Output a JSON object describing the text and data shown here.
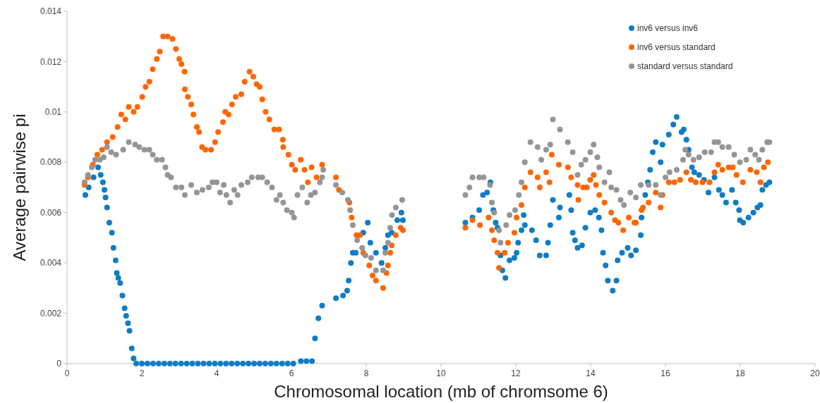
{
  "chart_data": {
    "type": "scatter",
    "xlabel": "Chromosomal location (mb of chromsome 6)",
    "ylabel": "Average pairwise pi",
    "xlim": [
      0,
      20
    ],
    "ylim": [
      0,
      0.014
    ],
    "xticks": [
      0,
      2,
      4,
      6,
      8,
      10,
      12,
      14,
      16,
      18,
      20
    ],
    "yticks": [
      0,
      0.002,
      0.004,
      0.006,
      0.008,
      0.01,
      0.012,
      0.014
    ],
    "grid": false,
    "legend": "top right",
    "marker": "circle",
    "series": [
      {
        "name": "inv6 versus inv6",
        "color": "#0f7cc6",
        "x": [
          0.49,
          0.58,
          0.71,
          0.83,
          0.9,
          0.96,
          1.0,
          1.03,
          1.07,
          1.13,
          1.2,
          1.24,
          1.3,
          1.33,
          1.37,
          1.42,
          1.48,
          1.54,
          1.58,
          1.63,
          1.67,
          1.73,
          1.78,
          1.85,
          2.0,
          2.15,
          2.3,
          2.45,
          2.6,
          2.75,
          2.9,
          3.05,
          3.2,
          3.35,
          3.5,
          3.65,
          3.8,
          3.95,
          4.1,
          4.25,
          4.4,
          4.55,
          4.7,
          4.85,
          5.0,
          5.15,
          5.3,
          5.45,
          5.6,
          5.75,
          5.9,
          6.05,
          6.25,
          6.4,
          6.55,
          6.63,
          6.72,
          6.82,
          7.19,
          7.38,
          7.49,
          7.53,
          7.59,
          7.64,
          7.72,
          7.92,
          8.04,
          8.11,
          8.26,
          8.41,
          8.51,
          8.58,
          8.68,
          8.83,
          8.94,
          8.98,
          10.65,
          10.84,
          11.02,
          11.12,
          11.23,
          11.32,
          11.4,
          11.46,
          11.51,
          11.59,
          11.64,
          11.72,
          11.83,
          11.96,
          12.02,
          12.06,
          12.15,
          12.21,
          12.24,
          12.43,
          12.54,
          12.64,
          12.81,
          12.86,
          12.92,
          12.99,
          13.15,
          13.18,
          13.43,
          13.48,
          13.52,
          13.58,
          13.65,
          13.77,
          13.86,
          13.99,
          14.12,
          14.22,
          14.29,
          14.33,
          14.4,
          14.46,
          14.59,
          14.69,
          14.72,
          14.84,
          14.99,
          15.08,
          15.21,
          15.34,
          15.36,
          15.46,
          15.53,
          15.59,
          15.66,
          15.74,
          15.87,
          15.92,
          16.09,
          16.21,
          16.3,
          16.43,
          16.49,
          16.56,
          16.62,
          16.71,
          16.77,
          16.9,
          17.03,
          17.15,
          17.31,
          17.43,
          17.52,
          17.62,
          17.78,
          17.88,
          17.97,
          17.99,
          18.08,
          18.22,
          18.35,
          18.46,
          18.54,
          18.59,
          18.69,
          18.78
        ],
        "values": [
          0.0067,
          0.007,
          0.0074,
          0.0078,
          0.0075,
          0.0072,
          0.0069,
          0.0066,
          0.0062,
          0.0056,
          0.0052,
          0.0046,
          0.0041,
          0.0036,
          0.0034,
          0.0032,
          0.0027,
          0.0022,
          0.0019,
          0.0016,
          0.0013,
          0.0006,
          0.0002,
          0,
          0,
          0,
          0,
          0,
          0,
          0,
          0,
          0,
          0,
          0,
          0,
          0,
          0,
          0,
          0,
          0,
          0,
          0,
          0,
          0,
          0,
          0,
          0,
          0,
          0,
          0,
          0,
          0,
          0.0001,
          0.0001,
          0.0001,
          0.001,
          0.0018,
          0.0023,
          0.0026,
          0.0027,
          0.0029,
          0.0033,
          0.004,
          0.0044,
          0.0044,
          0.0052,
          0.0056,
          0.0048,
          0.0044,
          0.004,
          0.0046,
          0.0051,
          0.0052,
          0.0057,
          0.006,
          0.0057,
          0.0056,
          0.0058,
          0.0061,
          0.0067,
          0.0068,
          0.0072,
          0.0061,
          0.0056,
          0.0054,
          0.0043,
          0.0037,
          0.0034,
          0.0041,
          0.0042,
          0.0044,
          0.0048,
          0.0053,
          0.0059,
          0.0055,
          0.0053,
          0.0049,
          0.0043,
          0.0043,
          0.0048,
          0.0055,
          0.0065,
          0.0058,
          0.0062,
          0.0067,
          0.0061,
          0.0052,
          0.0049,
          0.0046,
          0.0047,
          0.0054,
          0.006,
          0.0061,
          0.0058,
          0.0053,
          0.0044,
          0.0039,
          0.0033,
          0.0029,
          0.0033,
          0.0041,
          0.0044,
          0.0046,
          0.0043,
          0.0045,
          0.0051,
          0.0058,
          0.0067,
          0.0072,
          0.0077,
          0.0084,
          0.0088,
          0.008,
          0.0087,
          0.0091,
          0.0095,
          0.0098,
          0.0092,
          0.0093,
          0.0089,
          0.0085,
          0.0078,
          0.0076,
          0.0075,
          0.0073,
          0.0068,
          0.0074,
          0.0069,
          0.0067,
          0.0064,
          0.0069,
          0.0064,
          0.0061,
          0.0057,
          0.0056,
          0.0058,
          0.006,
          0.0062,
          0.0063,
          0.0069,
          0.0071,
          0.0072
        ]
      },
      {
        "name": "inv6 versus standard",
        "color": "#ff6600",
        "x": [
          0.47,
          0.56,
          0.69,
          0.81,
          0.94,
          1.07,
          1.22,
          1.35,
          1.45,
          1.56,
          1.65,
          1.78,
          1.88,
          2.01,
          2.1,
          2.2,
          2.29,
          2.4,
          2.48,
          2.57,
          2.69,
          2.82,
          2.91,
          3.0,
          3.06,
          3.14,
          3.15,
          3.23,
          3.32,
          3.38,
          3.47,
          3.53,
          3.61,
          3.7,
          3.85,
          3.96,
          4.04,
          4.17,
          4.23,
          4.32,
          4.41,
          4.51,
          4.66,
          4.75,
          4.88,
          4.98,
          5.07,
          5.15,
          5.22,
          5.31,
          5.41,
          5.54,
          5.67,
          5.77,
          5.78,
          5.92,
          6.01,
          6.1,
          6.25,
          6.35,
          6.44,
          6.54,
          6.67,
          6.82,
          7.19,
          7.27,
          7.55,
          7.61,
          7.74,
          7.83,
          7.92,
          8.08,
          8.17,
          8.26,
          8.45,
          8.54,
          8.58,
          8.64,
          8.68,
          8.79,
          8.92,
          8.98,
          10.65,
          10.84,
          11.04,
          11.27,
          11.36,
          11.42,
          11.51,
          11.55,
          11.7,
          11.79,
          11.96,
          12.02,
          12.15,
          12.24,
          12.39,
          12.58,
          12.64,
          12.81,
          12.9,
          12.96,
          13.15,
          13.39,
          13.48,
          13.65,
          13.67,
          13.8,
          13.9,
          13.99,
          14.08,
          14.14,
          14.23,
          14.37,
          14.55,
          14.65,
          14.74,
          14.87,
          15.02,
          15.17,
          15.21,
          15.36,
          15.4,
          15.55,
          15.74,
          15.87,
          15.92,
          16.09,
          16.24,
          16.39,
          16.56,
          16.68,
          16.81,
          16.99,
          17.18,
          17.31,
          17.41,
          17.52,
          17.69,
          17.8,
          17.9,
          18.07,
          18.27,
          18.44,
          18.54,
          18.63,
          18.74
        ],
        "values": [
          0.0071,
          0.0074,
          0.0079,
          0.0083,
          0.0085,
          0.0088,
          0.009,
          0.0094,
          0.0099,
          0.0097,
          0.0102,
          0.01,
          0.0102,
          0.0106,
          0.011,
          0.0112,
          0.0117,
          0.0121,
          0.0124,
          0.013,
          0.013,
          0.0129,
          0.0125,
          0.0121,
          0.0119,
          0.0116,
          0.0109,
          0.0106,
          0.0103,
          0.0099,
          0.0094,
          0.0092,
          0.0086,
          0.0085,
          0.0085,
          0.0088,
          0.0092,
          0.0096,
          0.01,
          0.0099,
          0.0103,
          0.0106,
          0.0107,
          0.0112,
          0.0116,
          0.0114,
          0.0111,
          0.011,
          0.0105,
          0.01,
          0.0097,
          0.0093,
          0.0093,
          0.0089,
          0.0086,
          0.0083,
          0.0079,
          0.0077,
          0.0081,
          0.0077,
          0.0072,
          0.0078,
          0.0074,
          0.0079,
          0.0074,
          0.0069,
          0.0064,
          0.0058,
          0.0051,
          0.0051,
          0.0044,
          0.0039,
          0.0035,
          0.0033,
          0.003,
          0.0036,
          0.0039,
          0.0044,
          0.0047,
          0.0051,
          0.0054,
          0.0053,
          0.0054,
          0.0057,
          0.0055,
          0.0058,
          0.0053,
          0.0049,
          0.0044,
          0.0038,
          0.0044,
          0.0048,
          0.0052,
          0.0058,
          0.0063,
          0.007,
          0.0076,
          0.0074,
          0.007,
          0.0076,
          0.0072,
          0.0083,
          0.0079,
          0.0078,
          0.0074,
          0.0071,
          0.0065,
          0.007,
          0.007,
          0.0073,
          0.0075,
          0.0071,
          0.0067,
          0.0064,
          0.006,
          0.0057,
          0.0056,
          0.0053,
          0.0058,
          0.0056,
          0.0056,
          0.0061,
          0.0062,
          0.0064,
          0.0068,
          0.0062,
          0.0067,
          0.0072,
          0.0072,
          0.0073,
          0.0076,
          0.0073,
          0.0072,
          0.0072,
          0.0072,
          0.0076,
          0.0079,
          0.0077,
          0.0078,
          0.0078,
          0.0075,
          0.0072,
          0.0077,
          0.0076,
          0.0072,
          0.0078,
          0.008
        ]
      },
      {
        "name": "standard versus standard",
        "color": "#959595",
        "x": [
          0.47,
          0.56,
          0.66,
          0.75,
          0.88,
          0.98,
          1.07,
          1.18,
          1.31,
          1.5,
          1.65,
          1.82,
          1.93,
          2.07,
          2.2,
          2.29,
          2.4,
          2.54,
          2.63,
          2.69,
          2.78,
          2.91,
          3.06,
          3.15,
          3.32,
          3.47,
          3.62,
          3.79,
          3.89,
          4.0,
          4.09,
          4.19,
          4.26,
          4.36,
          4.47,
          4.56,
          4.66,
          4.83,
          4.94,
          5.11,
          5.22,
          5.35,
          5.48,
          5.6,
          5.69,
          5.78,
          5.88,
          6.01,
          6.07,
          6.16,
          6.29,
          6.42,
          6.52,
          6.63,
          6.76,
          6.82,
          6.85,
          7.19,
          7.36,
          7.51,
          7.57,
          7.64,
          7.76,
          7.89,
          7.98,
          8.13,
          8.26,
          8.45,
          8.51,
          8.58,
          8.64,
          8.69,
          8.79,
          8.96,
          10.65,
          10.76,
          10.84,
          11.02,
          11.14,
          11.31,
          11.36,
          11.42,
          11.55,
          11.59,
          11.74,
          11.83,
          11.98,
          12.08,
          12.15,
          12.24,
          12.39,
          12.58,
          12.68,
          12.81,
          12.92,
          12.99,
          13.18,
          13.39,
          13.52,
          13.65,
          13.75,
          13.86,
          13.99,
          14.08,
          14.18,
          14.23,
          14.37,
          14.5,
          14.55,
          14.69,
          14.8,
          14.89,
          15.06,
          15.21,
          15.34,
          15.55,
          15.74,
          15.87,
          16.0,
          16.11,
          16.3,
          16.47,
          16.53,
          16.62,
          16.75,
          16.9,
          17.05,
          17.22,
          17.31,
          17.41,
          17.52,
          17.69,
          17.84,
          17.99,
          18.16,
          18.27,
          18.4,
          18.5,
          18.59,
          18.72,
          18.78
        ],
        "values": [
          0.0072,
          0.0075,
          0.0078,
          0.0081,
          0.0081,
          0.0082,
          0.0086,
          0.0084,
          0.0083,
          0.0085,
          0.0088,
          0.0087,
          0.0086,
          0.0085,
          0.0085,
          0.0083,
          0.0081,
          0.0081,
          0.0078,
          0.0075,
          0.0074,
          0.007,
          0.007,
          0.0067,
          0.0071,
          0.0068,
          0.0069,
          0.007,
          0.0072,
          0.0072,
          0.0068,
          0.0071,
          0.0067,
          0.0064,
          0.0069,
          0.0067,
          0.0071,
          0.0072,
          0.0074,
          0.0074,
          0.0074,
          0.0072,
          0.007,
          0.0065,
          0.0067,
          0.0064,
          0.0061,
          0.006,
          0.0058,
          0.0067,
          0.007,
          0.0064,
          0.0067,
          0.0068,
          0.0072,
          0.0074,
          0.0077,
          0.0071,
          0.0068,
          0.0065,
          0.0061,
          0.0055,
          0.0049,
          0.0046,
          0.0043,
          0.0042,
          0.0037,
          0.0037,
          0.0044,
          0.0048,
          0.0054,
          0.0059,
          0.0062,
          0.0065,
          0.0067,
          0.007,
          0.0074,
          0.0074,
          0.0074,
          0.0071,
          0.0064,
          0.006,
          0.0053,
          0.0048,
          0.0055,
          0.0059,
          0.0061,
          0.0067,
          0.0072,
          0.008,
          0.0088,
          0.0086,
          0.0081,
          0.0085,
          0.0087,
          0.0097,
          0.0093,
          0.0088,
          0.0084,
          0.0075,
          0.0079,
          0.0081,
          0.0084,
          0.0087,
          0.0082,
          0.0078,
          0.0072,
          0.0076,
          0.007,
          0.0069,
          0.0065,
          0.0063,
          0.0068,
          0.0066,
          0.0071,
          0.0071,
          0.0071,
          0.0067,
          0.0074,
          0.0076,
          0.0077,
          0.0081,
          0.0085,
          0.0083,
          0.0081,
          0.0082,
          0.0084,
          0.0084,
          0.0088,
          0.0088,
          0.0086,
          0.0086,
          0.0083,
          0.008,
          0.0081,
          0.0085,
          0.0083,
          0.0081,
          0.0085,
          0.0088,
          0.0088
        ]
      }
    ]
  }
}
